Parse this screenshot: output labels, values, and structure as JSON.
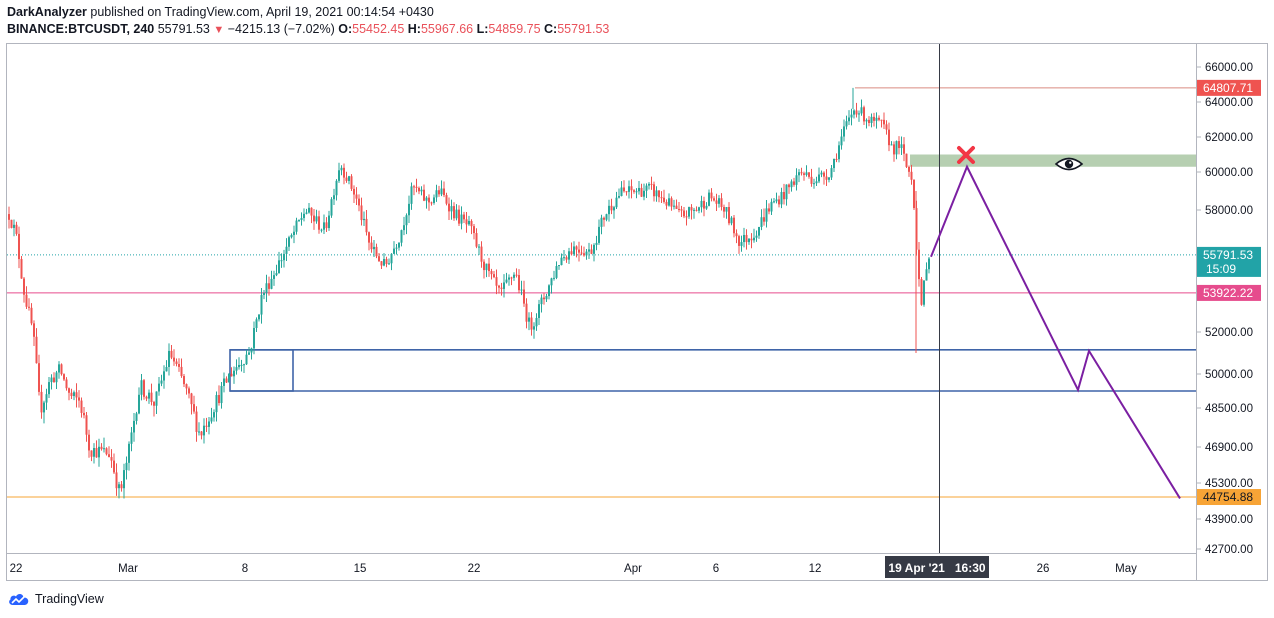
{
  "header": {
    "author": "DarkAnalyzer",
    "published_text": "published on TradingView.com, April 19, 2021 00:14:54 +0430",
    "symbol": "BINANCE:BTCUSDT, 240",
    "last": "55791.53",
    "change": "−4215.13 (−7.02%)",
    "o_label": "O:",
    "o_val": "55452.45",
    "h_label": "H:",
    "h_val": "55967.66",
    "l_label": "L:",
    "l_val": "54859.75",
    "c_label": "C:",
    "c_val": "55791.53"
  },
  "footer": {
    "brand": "TradingView",
    "logo_icon": "tradingview-cloud-icon"
  },
  "colors": {
    "up": "#26a69a",
    "down": "#ef5350",
    "purple": "#7b1fa2",
    "blue": "#3f64a8",
    "green_zone": "#9dbf97",
    "orange": "#f7a436",
    "pink": "#e64c8d",
    "teal": "#22a3a7",
    "red_label": "#ef5350"
  },
  "chart_data": {
    "type": "candlestick",
    "x_axis": {
      "tick_labels": [
        "22",
        "Mar",
        "8",
        "15",
        "22",
        "Apr",
        "6",
        "12",
        "26",
        "May"
      ],
      "cursor_label": "19 Apr '21   16:30"
    },
    "y_axis": {
      "tick_labels": [
        "66000.00",
        "64000.00",
        "62000.00",
        "60000.00",
        "58000.00",
        "52000.00",
        "50000.00",
        "48500.00",
        "46900.00",
        "45300.00",
        "43900.00",
        "42700.00"
      ]
    },
    "price_labels": [
      {
        "text": "64807.71",
        "value": 64807.71,
        "color": "red"
      },
      {
        "text": "55791.53",
        "sub": "15:09",
        "value": 55791.53,
        "color": "teal"
      },
      {
        "text": "53922.22",
        "value": 53922.22,
        "color": "pink"
      },
      {
        "text": "44754.88",
        "value": 44754.88,
        "color": "orange"
      }
    ],
    "horizontal_lines": [
      {
        "name": "high",
        "value": 64807.71,
        "color": "red"
      },
      {
        "name": "last",
        "value": 55791.53,
        "style": "dotted",
        "color": "teal"
      },
      {
        "name": "support",
        "value": 53922.22,
        "color": "pink"
      },
      {
        "name": "target",
        "value": 44754.88,
        "color": "orange"
      }
    ],
    "zones": [
      {
        "name": "resistance-zone",
        "from": 60300,
        "to": 61000,
        "color": "green"
      },
      {
        "name": "demand-zone",
        "from": 49250,
        "to": 51150,
        "color": "blue"
      }
    ],
    "projection": [
      55700,
      60300,
      49300,
      51100,
      44700
    ],
    "annotations": [
      "x-mark-icon",
      "eye-icon"
    ]
  }
}
